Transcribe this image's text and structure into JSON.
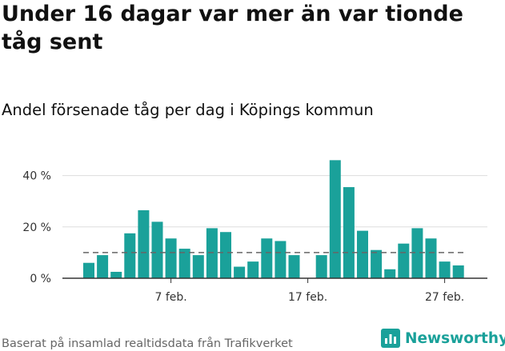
{
  "title": "Under 16 dagar var mer än var tionde tåg sent",
  "subtitle": "Andel försenade tåg per dag i Köpings kommun",
  "footer": "Baserat på insamlad realtidsdata från Trafikverket",
  "brand": {
    "name": "Newsworthy",
    "color": "#1aa19a",
    "icon": "chart-bars-icon"
  },
  "chart_data": {
    "type": "bar",
    "title": "Under 16 dagar var mer än var tionde tåg sent",
    "subtitle": "Andel försenade tåg per dag i Köpings kommun",
    "x": [
      "2025-02-01",
      "2025-02-02",
      "2025-02-03",
      "2025-02-04",
      "2025-02-05",
      "2025-02-06",
      "2025-02-07",
      "2025-02-08",
      "2025-02-09",
      "2025-02-10",
      "2025-02-11",
      "2025-02-12",
      "2025-02-13",
      "2025-02-14",
      "2025-02-15",
      "2025-02-16",
      "2025-02-17",
      "2025-02-18",
      "2025-02-19",
      "2025-02-20",
      "2025-02-21",
      "2025-02-22",
      "2025-02-23",
      "2025-02-24",
      "2025-02-25",
      "2025-02-26",
      "2025-02-27",
      "2025-02-28"
    ],
    "values": [
      6,
      9,
      2.5,
      17.5,
      26.5,
      22,
      15.5,
      11.5,
      9,
      19.5,
      18,
      4.5,
      6.5,
      15.5,
      14.5,
      9,
      0,
      9,
      46,
      35.5,
      18.5,
      11,
      3.5,
      13.5,
      19.5,
      15.5,
      6.5,
      5
    ],
    "xticks": [
      {
        "index": 6,
        "label": "7 feb."
      },
      {
        "index": 16,
        "label": "17 feb."
      },
      {
        "index": 26,
        "label": "27 feb."
      }
    ],
    "yticks": [
      {
        "value": 0,
        "label": "0 %"
      },
      {
        "value": 20,
        "label": "20 %"
      },
      {
        "value": 40,
        "label": "40 %"
      }
    ],
    "ylim": [
      0,
      50
    ],
    "reference_line": 10,
    "bar_color": "#1aa19a",
    "reference_color": "#666666",
    "grid": true
  }
}
